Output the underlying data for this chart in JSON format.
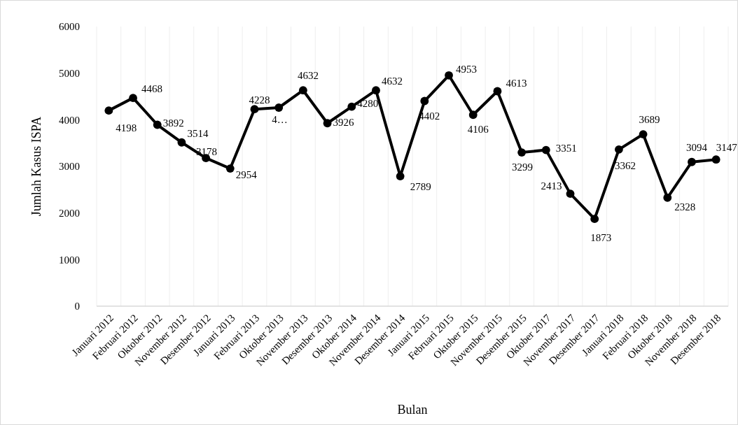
{
  "chart_data": {
    "type": "line",
    "xlabel": "Bulan",
    "ylabel": "Jumlah Kasus ISPA",
    "categories": [
      "Januari 2012",
      "Februari 2012",
      "Oktober 2012",
      "November 2012",
      "Desember 2012",
      "Januari 2013",
      "Februari 2013",
      "Oktober 2013",
      "November 2013",
      "Desember 2013",
      "Oktober 2014",
      "November 2014",
      "Desember 2014",
      "Januari 2015",
      "Februari 2015",
      "Oktober 2015",
      "November 2015",
      "Desember 2015",
      "Oktober 2017",
      "November 2017",
      "Desember 2017",
      "Januari 2018",
      "Februari 2018",
      "Oktober 2018",
      "November 2018",
      "Desember 2018"
    ],
    "series": [
      {
        "color": "#000000",
        "values": [
          4198,
          4468,
          3892,
          3514,
          3178,
          2954,
          4228,
          4260,
          4632,
          3926,
          4280,
          4632,
          2789,
          4402,
          4953,
          4106,
          4613,
          3299,
          3351,
          2413,
          1873,
          3362,
          3689,
          2328,
          3094,
          3147
        ],
        "value_labels": [
          "4198",
          "4468",
          "3892",
          "3514",
          "3178",
          "2954",
          "4228",
          "4…",
          "4632",
          "3926",
          "4280",
          "4632",
          "2789",
          "4402",
          "4953",
          "4106",
          "4613",
          "3299",
          "3351",
          "2413",
          "1873",
          "3362",
          "3689",
          "2328",
          "3094",
          "3147"
        ]
      }
    ],
    "ylim": [
      0,
      6000
    ],
    "yticks": [
      0,
      1000,
      2000,
      3000,
      4000,
      5000,
      6000
    ],
    "grid": "x",
    "marker": "circle",
    "line_style": "solid"
  }
}
